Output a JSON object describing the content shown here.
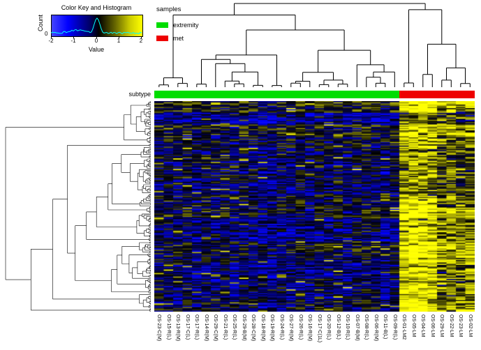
{
  "color_key": {
    "title": "Color Key and Histogram",
    "xlabel": "Value",
    "ylabel": "Count",
    "x_ticks": [
      "-2",
      "-1",
      "0",
      "1",
      "2"
    ],
    "y_ticks": [
      "0"
    ],
    "hist_color": "#00ffff"
  },
  "legend": {
    "title": "samples",
    "items": [
      {
        "label": "extremity",
        "color": "#00dd00"
      },
      {
        "label": "met",
        "color": "#ee0000"
      }
    ]
  },
  "side_label": "subtype",
  "chart_data": {
    "type": "heatmap",
    "value_range": [
      -2,
      2
    ],
    "color_scale": {
      "low": "#0000ff",
      "mid": "#000000",
      "high": "#ffff00"
    },
    "row_labels_shown": false,
    "col_group_colors": {
      "extremity": "#00dd00",
      "met": "#ee0000"
    },
    "columns": [
      {
        "label": "OS-23-C(M)",
        "group": "extremity",
        "bias": -0.45
      },
      {
        "label": "OS-15-R(L)",
        "group": "extremity",
        "bias": -0.35
      },
      {
        "label": "OS-13-R(M)",
        "group": "extremity",
        "bias": -0.5
      },
      {
        "label": "OS-17-C(L)",
        "group": "extremity",
        "bias": -0.3
      },
      {
        "label": "OS-17-R(L)",
        "group": "extremity",
        "bias": -0.7
      },
      {
        "label": "OS-14-R(M)",
        "group": "extremity",
        "bias": -0.4
      },
      {
        "label": "OS-29-C(M)",
        "group": "extremity",
        "bias": -0.55
      },
      {
        "label": "OS-21-R(L)",
        "group": "extremity",
        "bias": -0.35
      },
      {
        "label": "OS-25-R(L)",
        "group": "extremity",
        "bias": -0.6
      },
      {
        "label": "OS-29-B(M)",
        "group": "extremity",
        "bias": -0.3
      },
      {
        "label": "OS-28-C(M)",
        "group": "extremity",
        "bias": -0.5
      },
      {
        "label": "OS-18-R(M)",
        "group": "extremity",
        "bias": -0.8
      },
      {
        "label": "OS-19-R(M)",
        "group": "extremity",
        "bias": -0.9
      },
      {
        "label": "OS-24-R(L)",
        "group": "extremity",
        "bias": -0.45
      },
      {
        "label": "OS-27-R(M)",
        "group": "extremity",
        "bias": -0.6
      },
      {
        "label": "OS-26-R(L)",
        "group": "extremity",
        "bias": -0.35
      },
      {
        "label": "OS-16-R(M)",
        "group": "extremity",
        "bias": -0.7
      },
      {
        "label": "OS-17-C(1L)",
        "group": "extremity",
        "bias": -0.4
      },
      {
        "label": "OS-20-R(L)",
        "group": "extremity",
        "bias": -0.55
      },
      {
        "label": "OS-12-B(L)",
        "group": "extremity",
        "bias": -0.3
      },
      {
        "label": "OS-10-R(L)",
        "group": "extremity",
        "bias": -0.65
      },
      {
        "label": "OS-07-B(M)",
        "group": "extremity",
        "bias": -0.4
      },
      {
        "label": "OS-08-R(L)",
        "group": "extremity",
        "bias": -0.25
      },
      {
        "label": "OS-06-R(M)",
        "group": "extremity",
        "bias": -0.5
      },
      {
        "label": "OS-11-B(L)",
        "group": "extremity",
        "bias": -0.75
      },
      {
        "label": "OS-09-R(L)",
        "group": "extremity",
        "bias": -0.45
      },
      {
        "label": "OS-01-LM2",
        "group": "met",
        "bias": 1.3
      },
      {
        "label": "OS-05-LM",
        "group": "met",
        "bias": 1.6
      },
      {
        "label": "OS-04-LM",
        "group": "met",
        "bias": 1.5
      },
      {
        "label": "OS-06-LM",
        "group": "met",
        "bias": 1.2
      },
      {
        "label": "OS-29-LM",
        "group": "met",
        "bias": 0.5
      },
      {
        "label": "OS-22-LM",
        "group": "met",
        "bias": 0.8
      },
      {
        "label": "OS-23-LM",
        "group": "met",
        "bias": 0.45
      },
      {
        "label": "OS-02-LM",
        "group": "met",
        "bias": 0.6
      }
    ],
    "render": {
      "seed": 7,
      "n_rows": 180,
      "noise": 2.2
    }
  }
}
